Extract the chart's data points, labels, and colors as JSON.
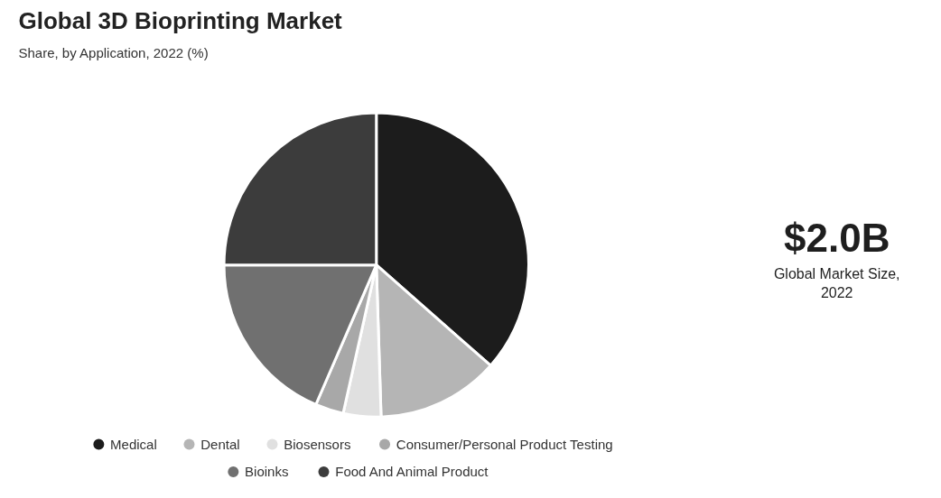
{
  "chart_data": {
    "type": "pie",
    "title": "Global 3D Bioprinting Market",
    "subtitle": "Share, by Application, 2022 (%)",
    "categories": [
      "Medical",
      "Dental",
      "Biosensors",
      "Consumer/Personal Product Testing",
      "Bioinks",
      "Food And Animal Product"
    ],
    "values": [
      36.5,
      13,
      4,
      3,
      18.5,
      25
    ],
    "colors": [
      "#1c1c1c",
      "#b5b5b5",
      "#e0e0e0",
      "#a8a8a8",
      "#707070",
      "#3c3c3c"
    ],
    "legend": "bottom",
    "annotations": [
      "$2.0B",
      "Global Market Size,\n2022"
    ]
  }
}
